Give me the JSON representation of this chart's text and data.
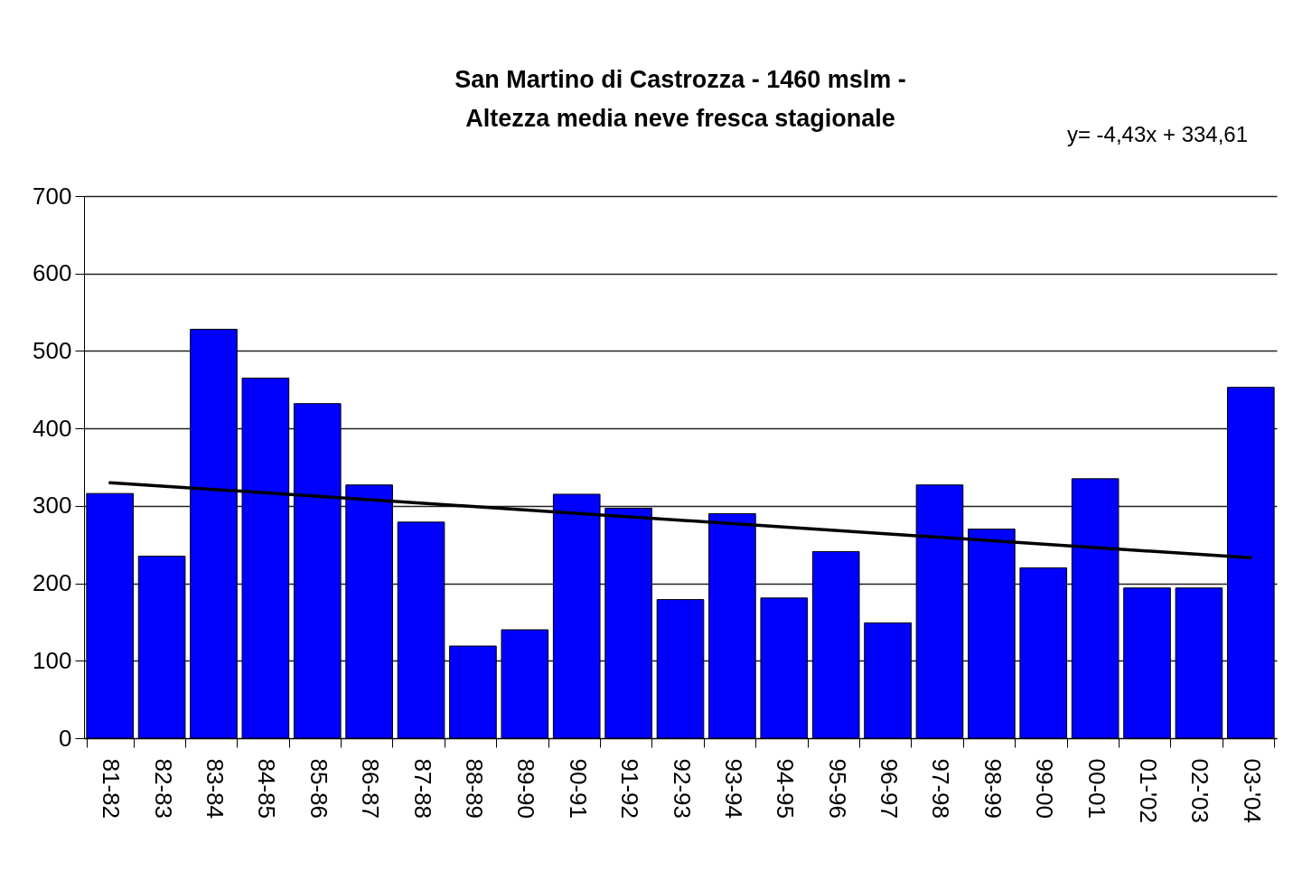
{
  "chart_data": {
    "type": "bar",
    "title": "San Martino di Castrozza - 1460 mslm -\nAltezza media neve fresca stagionale",
    "annotations": [
      "y= -4,43x + 334,61"
    ],
    "categories": [
      "81-82",
      "82-83",
      "83-84",
      "84-85",
      "85-86",
      "86-87",
      "87-88",
      "88-89",
      "89-90",
      "90-91",
      "91-92",
      "92-93",
      "93-94",
      "94-95",
      "95-96",
      "96-97",
      "97-98",
      "98-99",
      "99-00",
      "00-01",
      "01-'02",
      "02-'03",
      "03-'04"
    ],
    "series": [
      {
        "color": "#0000ff",
        "values": [
          316,
          235,
          528,
          465,
          432,
          327,
          279,
          119,
          140,
          315,
          297,
          179,
          290,
          181,
          241,
          149,
          327,
          270,
          220,
          335,
          194,
          194,
          453
        ]
      },
      {
        "type": "line",
        "color": "#000000",
        "x": [
          "81-82",
          "03-'04"
        ],
        "values": [
          330,
          233
        ]
      }
    ],
    "ylim": [
      0,
      700
    ],
    "yticks": [
      0,
      100,
      200,
      300,
      400,
      500,
      600,
      700
    ],
    "grid": "y"
  }
}
